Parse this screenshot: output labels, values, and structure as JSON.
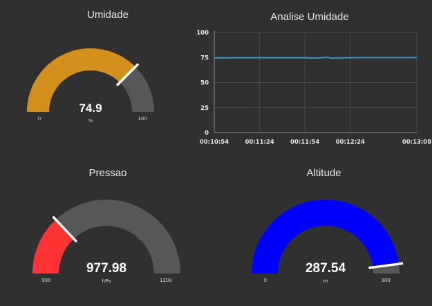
{
  "colors": {
    "background": "#303030",
    "track": "#575757",
    "needle": "#ffffff",
    "gridline": "#4a4a4a",
    "line": "#2b9fd6"
  },
  "gauges": [
    {
      "title": "Umidade",
      "value": 74.9,
      "display": "74.9",
      "unit": "%",
      "min": 0,
      "max": 100,
      "min_label": "0",
      "max_label": "100",
      "color": "#d4901c"
    },
    {
      "title": "Pressao",
      "value": 977.98,
      "display": "977.98",
      "unit": "hPa",
      "min": 900,
      "max": 1200,
      "min_label": "900",
      "max_label": "1200",
      "color": "#ff3333"
    },
    {
      "title": "Altitude",
      "value": 287.54,
      "display": "287.54",
      "unit": "m",
      "min": 0,
      "max": 300,
      "min_label": "0",
      "max_label": "300",
      "color": "#0000ff"
    }
  ],
  "chart": {
    "title": "Analise Umidade",
    "chart_data": {
      "type": "line",
      "title": "Analise Umidade",
      "xlabel": "",
      "ylabel": "",
      "ylim": [
        0,
        100
      ],
      "xlim": [
        "00:10:54",
        "00:13:08"
      ],
      "y_ticks": [
        "0",
        "25",
        "50",
        "75",
        "100"
      ],
      "x_ticks": [
        "00:10:54",
        "00:11:24",
        "00:11:54",
        "00:12:24",
        "00:13:08"
      ],
      "grid": true,
      "series": [
        {
          "x": [
            "00:10:54",
            "00:11:00",
            "00:11:10",
            "00:11:24",
            "00:11:40",
            "00:11:54",
            "00:11:58",
            "00:12:04",
            "00:12:08",
            "00:12:12",
            "00:12:16",
            "00:12:24",
            "00:12:40",
            "00:13:00",
            "00:13:08"
          ],
          "values": [
            74.6,
            74.6,
            74.8,
            74.8,
            74.8,
            74.8,
            74.4,
            74.6,
            75.2,
            74.3,
            74.5,
            74.8,
            74.9,
            74.9,
            74.9
          ]
        }
      ]
    }
  }
}
